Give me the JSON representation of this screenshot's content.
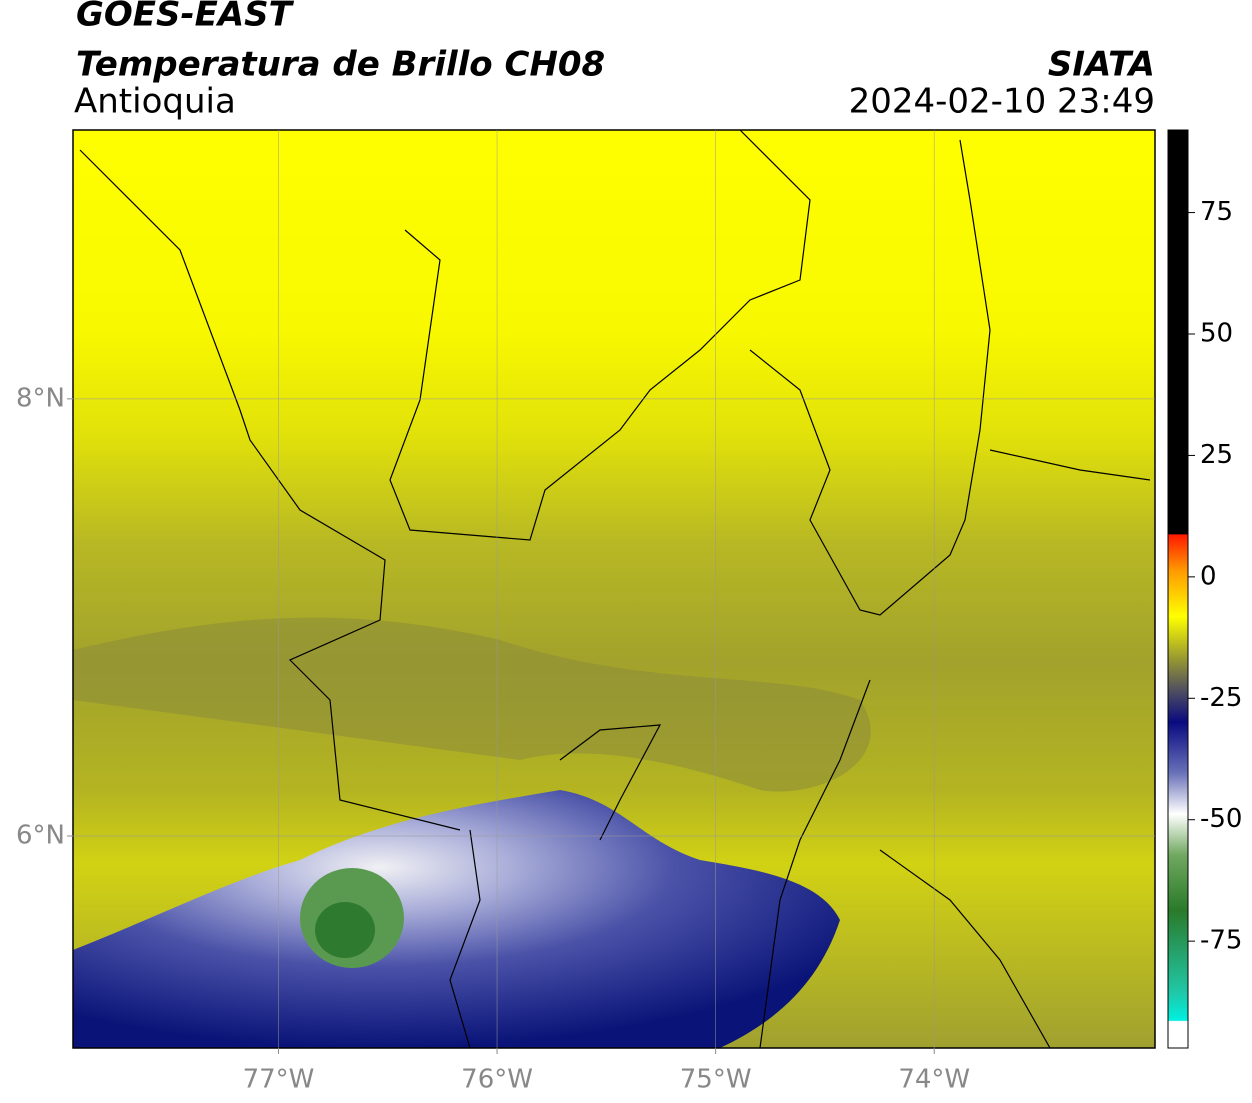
{
  "header": {
    "satellite": "GOES-EAST",
    "title": "Temperatura de Brillo CH08",
    "org": "SIATA",
    "region": "Antioquia",
    "datetime": "2024-02-10 23:49"
  },
  "map": {
    "xlim": [
      -77.94,
      -72.99
    ],
    "ylim": [
      5.03,
      9.23
    ],
    "xticks": [
      {
        "value": -77,
        "label": "77°W"
      },
      {
        "value": -76,
        "label": "76°W"
      },
      {
        "value": -75,
        "label": "75°W"
      },
      {
        "value": -74,
        "label": "74°W"
      }
    ],
    "yticks": [
      {
        "value": 8,
        "label": "8°N"
      },
      {
        "value": 6,
        "label": "6°N"
      }
    ],
    "grid": true
  },
  "colorbar": {
    "lim": [
      -97,
      92
    ],
    "ticks": [
      75,
      50,
      25,
      0,
      -25,
      -50,
      -75
    ]
  }
}
